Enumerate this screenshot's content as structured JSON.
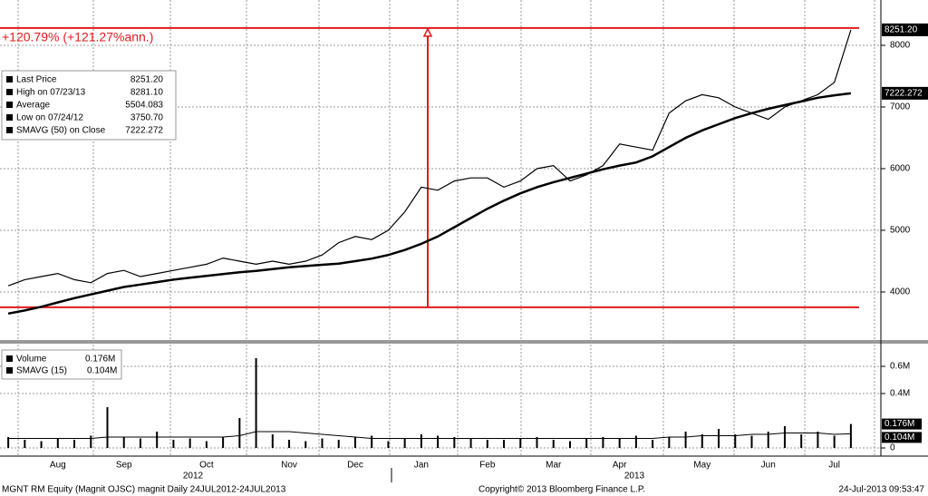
{
  "chart_data": [
    {
      "type": "line",
      "categories": [
        null,
        null,
        null,
        "Aug",
        null,
        null,
        null,
        "Sep",
        null,
        null,
        null,
        null,
        "Oct",
        null,
        null,
        null,
        null,
        "Nov",
        null,
        null,
        null,
        "Dec",
        null,
        null,
        null,
        "Jan",
        null,
        null,
        null,
        "Feb",
        null,
        null,
        null,
        "Mar",
        null,
        null,
        null,
        "Apr",
        null,
        null,
        null,
        null,
        "May",
        null,
        null,
        null,
        "Jun",
        null,
        null,
        null,
        "Jul",
        null
      ],
      "year_labels": [
        "2012",
        "2013"
      ],
      "series": [
        {
          "name": "Last Price",
          "color": "#000000",
          "values": [
            4100,
            4200,
            4250,
            4300,
            4200,
            4150,
            4300,
            4350,
            4250,
            4300,
            4350,
            4400,
            4450,
            4550,
            4500,
            4450,
            4500,
            4450,
            4500,
            4600,
            4800,
            4900,
            4850,
            5000,
            5300,
            5700,
            5650,
            5800,
            5850,
            5850,
            5700,
            5800,
            6000,
            6050,
            5800,
            5900,
            6050,
            6400,
            6350,
            6300,
            6900,
            7100,
            7200,
            7150,
            7000,
            6900,
            6800,
            7000,
            7100,
            7200,
            7400,
            8251.2
          ],
          "value_labels": [
            null,
            null,
            null,
            null,
            null,
            null,
            null,
            null,
            null,
            null,
            null,
            null,
            null,
            null,
            null,
            null,
            null,
            null,
            null,
            null,
            null,
            null,
            null,
            null,
            null,
            null,
            null,
            null,
            null,
            null,
            null,
            null,
            null,
            null,
            null,
            null,
            null,
            null,
            null,
            null,
            null,
            null,
            null,
            null,
            null,
            null,
            null,
            null,
            null,
            null,
            null,
            "8251.20"
          ]
        },
        {
          "name": "SMAVG (50) on Close",
          "color": "#000000",
          "values": [
            3650,
            3700,
            3760,
            3830,
            3900,
            3960,
            4020,
            4080,
            4120,
            4160,
            4200,
            4230,
            4260,
            4290,
            4320,
            4340,
            4370,
            4400,
            4420,
            4440,
            4460,
            4500,
            4540,
            4600,
            4680,
            4780,
            4900,
            5050,
            5200,
            5350,
            5480,
            5600,
            5700,
            5780,
            5850,
            5920,
            5990,
            6050,
            6100,
            6200,
            6350,
            6500,
            6620,
            6720,
            6820,
            6900,
            6970,
            7030,
            7090,
            7150,
            7190,
            7222.272
          ]
        }
      ],
      "stats": [
        {
          "name": "High on 07/23/13",
          "value": 8281.1,
          "value_label": "8281.10"
        },
        {
          "name": "Average",
          "value": 5504.083
        },
        {
          "name": "Low on 07/24/12",
          "value": 3750.7,
          "value_label": "3750.70"
        }
      ],
      "annotation": "+120.79% (+121.27%ann.)",
      "annotation_color": "#e31a1c",
      "ylim": [
        3220,
        8735
      ],
      "yticks": [
        4000,
        5000,
        6000,
        7000,
        8000
      ],
      "grid": true
    },
    {
      "type": "bar",
      "series": [
        {
          "name": "Volume",
          "color": "#000000",
          "values": [
            0.08,
            0.06,
            0.05,
            0.07,
            0.06,
            0.09,
            0.3,
            0.08,
            0.07,
            0.12,
            0.06,
            0.07,
            0.05,
            0.08,
            0.22,
            0.66,
            0.1,
            0.06,
            0.05,
            0.07,
            0.06,
            0.08,
            0.09,
            0.05,
            0.07,
            0.1,
            0.09,
            0.08,
            0.07,
            0.06,
            0.06,
            0.07,
            0.08,
            0.06,
            0.05,
            0.07,
            0.08,
            0.07,
            0.09,
            0.06,
            0.08,
            0.12,
            0.1,
            0.14,
            0.1,
            0.09,
            0.12,
            0.16,
            0.1,
            0.12,
            0.09,
            0.176
          ],
          "value_labels": [
            null,
            null,
            null,
            null,
            null,
            null,
            null,
            null,
            null,
            null,
            null,
            null,
            null,
            null,
            null,
            null,
            null,
            null,
            null,
            null,
            null,
            null,
            null,
            null,
            null,
            null,
            null,
            null,
            null,
            null,
            null,
            null,
            null,
            null,
            null,
            null,
            null,
            null,
            null,
            null,
            null,
            null,
            null,
            null,
            null,
            null,
            null,
            null,
            null,
            null,
            null,
            "0.176M"
          ]
        },
        {
          "name": "SMAVG (15)",
          "color": "#000000",
          "values": [
            0.07,
            0.07,
            0.07,
            0.07,
            0.07,
            0.07,
            0.08,
            0.08,
            0.08,
            0.08,
            0.08,
            0.08,
            0.08,
            0.08,
            0.09,
            0.12,
            0.12,
            0.12,
            0.11,
            0.1,
            0.09,
            0.08,
            0.07,
            0.07,
            0.07,
            0.07,
            0.07,
            0.07,
            0.07,
            0.07,
            0.07,
            0.07,
            0.07,
            0.07,
            0.07,
            0.07,
            0.07,
            0.07,
            0.07,
            0.07,
            0.08,
            0.08,
            0.09,
            0.09,
            0.09,
            0.1,
            0.1,
            0.11,
            0.11,
            0.11,
            0.1,
            0.104
          ],
          "value_labels": [
            null,
            null,
            null,
            null,
            null,
            null,
            null,
            null,
            null,
            null,
            null,
            null,
            null,
            null,
            null,
            null,
            null,
            null,
            null,
            null,
            null,
            null,
            null,
            null,
            null,
            null,
            null,
            null,
            null,
            null,
            null,
            null,
            null,
            null,
            null,
            null,
            null,
            null,
            null,
            null,
            null,
            null,
            null,
            null,
            null,
            null,
            null,
            null,
            null,
            null,
            null,
            "0.104M"
          ]
        }
      ],
      "ylim": [
        0,
        0.76
      ],
      "yticks": [
        0,
        {
          "value": 0.4,
          "label": "0.4M"
        },
        {
          "value": 0.6,
          "label": "0.6M"
        }
      ],
      "grid": true
    }
  ],
  "footer": {
    "left": "MGNT RM Equity (Magnit OJSC) magnit  Daily 24JUL2012-24JUL2013",
    "center": "Copyright© 2013 Bloomberg Finance L.P.",
    "right": "24-Jul-2013 09:53:47"
  }
}
